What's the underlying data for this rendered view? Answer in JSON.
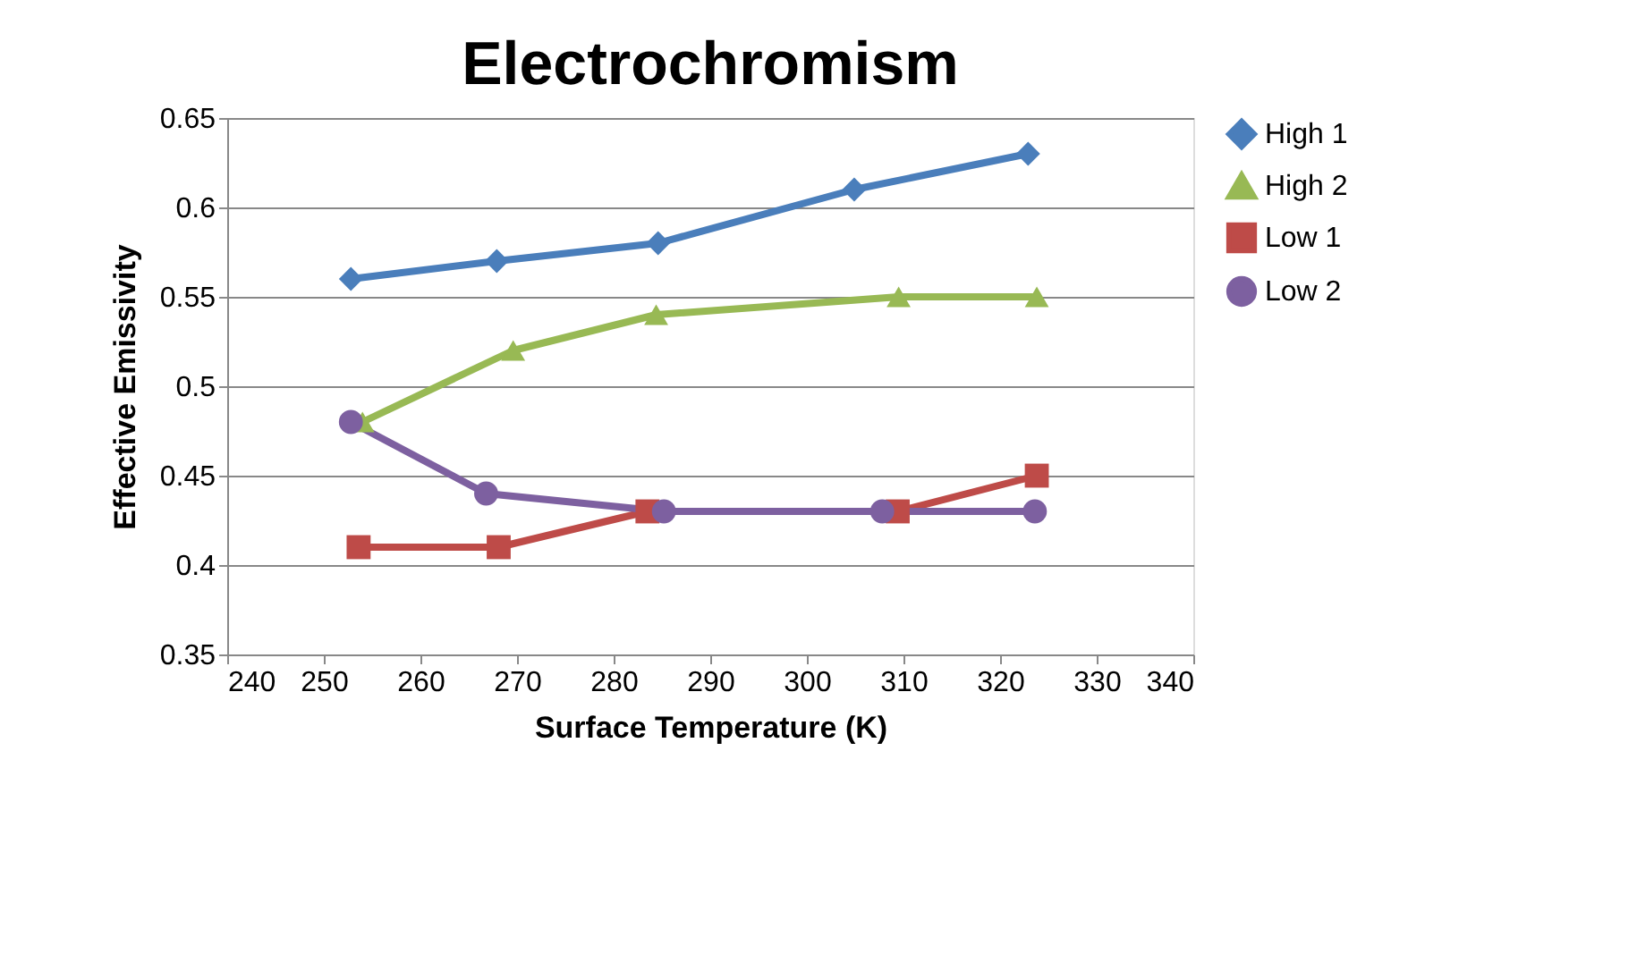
{
  "chart_data": {
    "type": "line",
    "title": "Electrochromism",
    "xlabel": "Surface Temperature (K)",
    "ylabel": "Effective Emissivity",
    "xlim": [
      240,
      340
    ],
    "xticks": [
      240,
      250,
      260,
      270,
      280,
      290,
      300,
      310,
      320,
      330,
      340
    ],
    "ylim": [
      0.35,
      0.65
    ],
    "yticks": [
      0.35,
      0.4,
      0.45,
      0.5,
      0.55,
      0.6,
      0.65
    ],
    "grid": "y",
    "legend": "right",
    "line_style": "solid",
    "series": [
      {
        "name": "High 1",
        "color": "#4a7ebb",
        "marker": "diamond",
        "x": [
          252.8,
          267.9,
          284.6,
          304.9,
          322.9
        ],
        "values": [
          0.56,
          0.57,
          0.58,
          0.61,
          0.63
        ]
      },
      {
        "name": "High 2",
        "color": "#98b954",
        "marker": "triangle",
        "x": [
          254,
          269.6,
          284.4,
          309.5,
          323.8
        ],
        "values": [
          0.48,
          0.52,
          0.54,
          0.55,
          0.55
        ]
      },
      {
        "name": "Low 1",
        "color": "#be4b48",
        "marker": "square",
        "x": [
          253.6,
          268.1,
          283.5,
          309.4,
          323.8
        ],
        "values": [
          0.41,
          0.41,
          0.43,
          0.43,
          0.45
        ]
      },
      {
        "name": "Low 2",
        "color": "#7d60a0",
        "marker": "circle",
        "x": [
          252.8,
          266.8,
          285.2,
          307.8,
          323.6
        ],
        "values": [
          0.48,
          0.44,
          0.43,
          0.43,
          0.43
        ]
      }
    ]
  }
}
